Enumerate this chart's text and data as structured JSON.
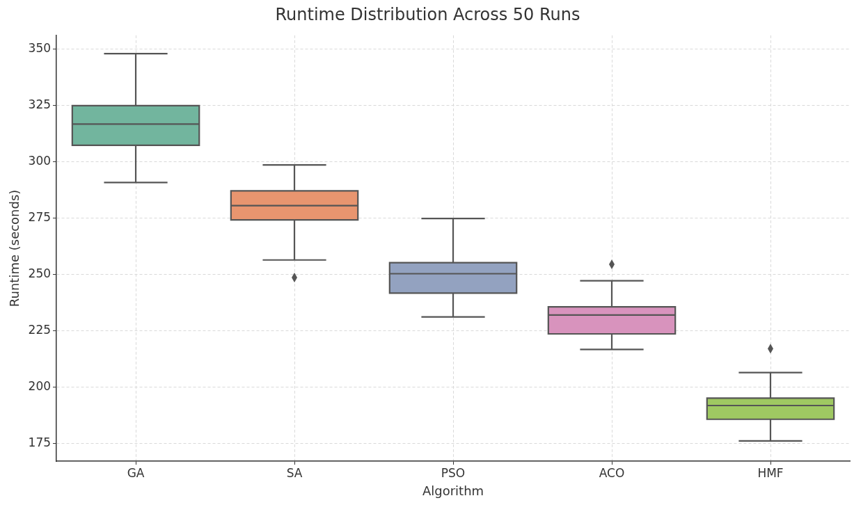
{
  "chart_data": {
    "type": "box",
    "title": "Runtime Distribution Across 50 Runs",
    "xlabel": "Algorithm",
    "ylabel": "Runtime (seconds)",
    "categories": [
      "GA",
      "SA",
      "PSO",
      "ACO",
      "HMF"
    ],
    "colors": [
      "#72b59e",
      "#e8956f",
      "#93a2c0",
      "#d893bd",
      "#9fc862"
    ],
    "boxes": [
      {
        "low": 290.7,
        "q1": 307.2,
        "median": 316.6,
        "q3": 324.8,
        "high": 347.9
      },
      {
        "low": 256.3,
        "q1": 274.1,
        "median": 280.4,
        "q3": 287.0,
        "high": 298.5,
        "outliers": [
          248.5
        ]
      },
      {
        "low": 231.0,
        "q1": 241.6,
        "median": 250.2,
        "q3": 255.1,
        "high": 274.7
      },
      {
        "low": 216.6,
        "q1": 223.5,
        "median": 231.9,
        "q3": 235.5,
        "high": 247.1,
        "outliers": [
          254.4
        ]
      },
      {
        "low": 176.0,
        "q1": 185.6,
        "median": 191.7,
        "q3": 195.0,
        "high": 206.3,
        "outliers": [
          216.9
        ]
      }
    ],
    "ylim": [
      167,
      356
    ],
    "yticks": [
      175,
      200,
      225,
      250,
      275,
      300,
      325,
      350
    ],
    "grid": true
  }
}
